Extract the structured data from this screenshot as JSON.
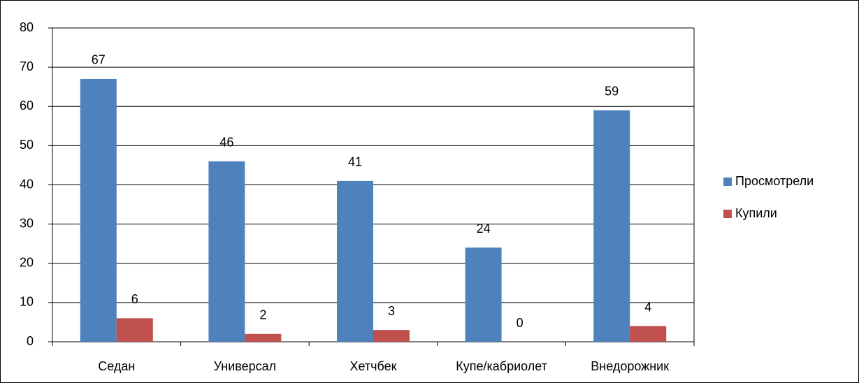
{
  "chart_data": {
    "type": "bar",
    "categories": [
      "Седан",
      "Универсал",
      "Хетчбек",
      "Купе/кабриолет",
      "Внедорожник"
    ],
    "series": [
      {
        "name": "Просмотрели",
        "color": "#4f81bd",
        "values": [
          67,
          46,
          41,
          24,
          59
        ]
      },
      {
        "name": "Купили",
        "color": "#c0504d",
        "values": [
          6,
          2,
          3,
          0,
          4
        ]
      }
    ],
    "ylim": [
      0,
      80
    ],
    "yticks": [
      0,
      10,
      20,
      30,
      40,
      50,
      60,
      70,
      80
    ],
    "grid": true,
    "legend": "right"
  }
}
